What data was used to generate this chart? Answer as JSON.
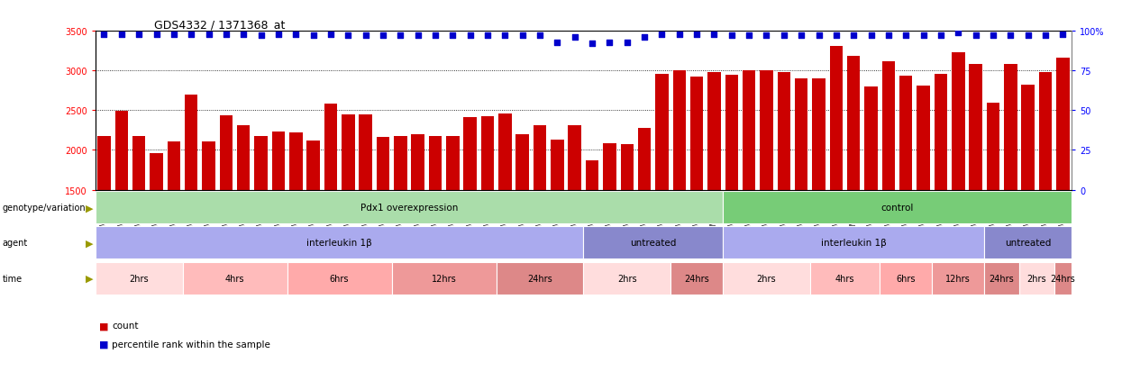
{
  "title": "GDS4332 / 1371368_at",
  "bar_color": "#cc0000",
  "dot_color": "#0000cc",
  "ylim_left": [
    1500,
    3500
  ],
  "yticks_left": [
    1500,
    2000,
    2500,
    3000,
    3500
  ],
  "yticks_right": [
    0,
    25,
    50,
    75,
    100
  ],
  "samples": [
    "GSM998740",
    "GSM998753",
    "GSM998766",
    "GSM998774",
    "GSM998729",
    "GSM998754",
    "GSM998767",
    "GSM998775",
    "GSM998741",
    "GSM998755",
    "GSM998768",
    "GSM998776",
    "GSM998730",
    "GSM998742",
    "GSM998747",
    "GSM998777",
    "GSM998731",
    "GSM998748",
    "GSM998756",
    "GSM998769",
    "GSM998732",
    "GSM998749",
    "GSM998757",
    "GSM998778",
    "GSM998733",
    "GSM998758",
    "GSM998770",
    "GSM998779",
    "GSM998734",
    "GSM998743",
    "GSM998759",
    "GSM998780",
    "GSM998735",
    "GSM998750",
    "GSM998760",
    "GSM998782",
    "GSM998744",
    "GSM998751",
    "GSM998761",
    "GSM998771",
    "GSM998736",
    "GSM998745",
    "GSM998762",
    "GSM998781",
    "GSM998737",
    "GSM998752",
    "GSM998763",
    "GSM998772",
    "GSM998738",
    "GSM998764",
    "GSM998773",
    "GSM998783",
    "GSM998739",
    "GSM998746",
    "GSM998765",
    "GSM998784"
  ],
  "bar_values": [
    2180,
    2490,
    2170,
    1960,
    2110,
    2700,
    2110,
    2440,
    2310,
    2170,
    2230,
    2220,
    2120,
    2580,
    2450,
    2450,
    2160,
    2170,
    2200,
    2180,
    2170,
    2410,
    2430,
    2460,
    2200,
    2310,
    2130,
    2310,
    1870,
    2090,
    2070,
    2280,
    2960,
    3000,
    2920,
    2980,
    2950,
    3000,
    3000,
    2980,
    2900,
    2900,
    3310,
    3180,
    2800,
    3120,
    2930,
    2810,
    2960,
    3230,
    3080,
    2590,
    3080,
    2820,
    2980,
    3160
  ],
  "dot_values_percentile": [
    98,
    98,
    98,
    98,
    98,
    98,
    98,
    98,
    98,
    97,
    98,
    98,
    97,
    98,
    97,
    97,
    97,
    97,
    97,
    97,
    97,
    97,
    97,
    97,
    97,
    97,
    93,
    96,
    92,
    93,
    93,
    96,
    98,
    98,
    98,
    98,
    97,
    97,
    97,
    97,
    97,
    97,
    97,
    97,
    97,
    97,
    97,
    97,
    97,
    99,
    97,
    97,
    97,
    97,
    97,
    98
  ],
  "genotype_sections": [
    {
      "label": "Pdx1 overexpression",
      "start": 0,
      "end": 36,
      "color": "#aaddaa"
    },
    {
      "label": "control",
      "start": 36,
      "end": 56,
      "color": "#77cc77"
    }
  ],
  "agent_sections": [
    {
      "label": "interleukin 1β",
      "start": 0,
      "end": 28,
      "color": "#aaaaee"
    },
    {
      "label": "untreated",
      "start": 28,
      "end": 36,
      "color": "#8888cc"
    },
    {
      "label": "interleukin 1β",
      "start": 36,
      "end": 51,
      "color": "#aaaaee"
    },
    {
      "label": "untreated",
      "start": 51,
      "end": 56,
      "color": "#8888cc"
    }
  ],
  "time_sections": [
    {
      "label": "2hrs",
      "start": 0,
      "end": 5,
      "color": "#ffdddd"
    },
    {
      "label": "4hrs",
      "start": 5,
      "end": 11,
      "color": "#ffbbbb"
    },
    {
      "label": "6hrs",
      "start": 11,
      "end": 17,
      "color": "#ffaaaa"
    },
    {
      "label": "12hrs",
      "start": 17,
      "end": 23,
      "color": "#ee9999"
    },
    {
      "label": "24hrs",
      "start": 23,
      "end": 28,
      "color": "#dd8888"
    },
    {
      "label": "2hrs",
      "start": 28,
      "end": 33,
      "color": "#ffdddd"
    },
    {
      "label": "24hrs",
      "start": 33,
      "end": 36,
      "color": "#dd8888"
    },
    {
      "label": "2hrs",
      "start": 36,
      "end": 41,
      "color": "#ffdddd"
    },
    {
      "label": "4hrs",
      "start": 41,
      "end": 45,
      "color": "#ffbbbb"
    },
    {
      "label": "6hrs",
      "start": 45,
      "end": 48,
      "color": "#ffaaaa"
    },
    {
      "label": "12hrs",
      "start": 48,
      "end": 51,
      "color": "#ee9999"
    },
    {
      "label": "24hrs",
      "start": 51,
      "end": 53,
      "color": "#dd8888"
    },
    {
      "label": "2hrs",
      "start": 53,
      "end": 55,
      "color": "#ffdddd"
    },
    {
      "label": "24hrs",
      "start": 55,
      "end": 56,
      "color": "#dd8888"
    }
  ],
  "row_labels": [
    "genotype/variation",
    "agent",
    "time"
  ],
  "legend_count_color": "#cc0000",
  "legend_dot_color": "#0000cc",
  "legend_count_label": "count",
  "legend_dot_label": "percentile rank within the sample"
}
